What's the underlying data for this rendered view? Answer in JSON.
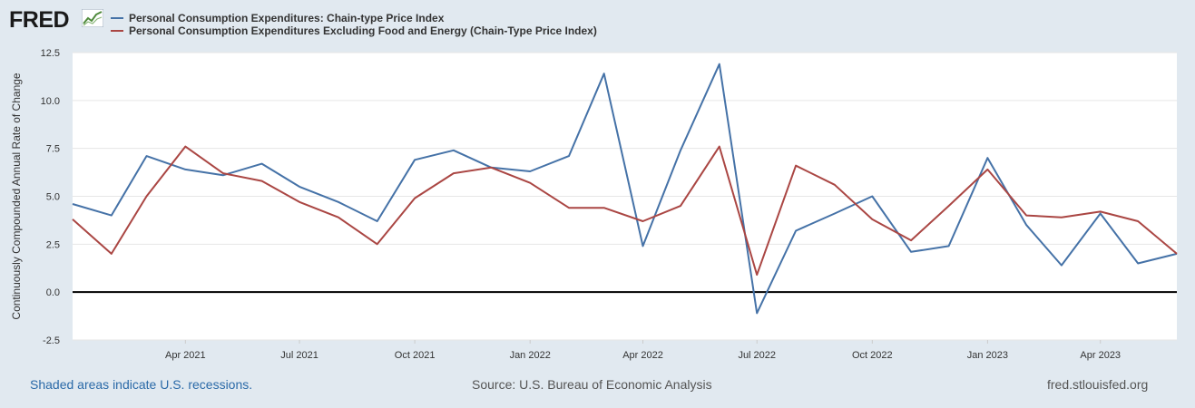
{
  "header": {
    "logo_text": "FRED",
    "logo_icon": "chart-line-icon"
  },
  "colors": {
    "series1": "#4572a7",
    "series2": "#aa4643",
    "background": "#e1e9f0",
    "plot_bg": "#ffffff"
  },
  "chart_data": {
    "type": "line",
    "title": "",
    "ylabel": "Continuously Compounded Annual Rate of Change",
    "xlabel": "",
    "ylim": [
      -2.5,
      12.5
    ],
    "yticks": [
      -2.5,
      0.0,
      2.5,
      5.0,
      7.5,
      10.0,
      12.5
    ],
    "ytick_labels": [
      "-2.5",
      "0.0",
      "2.5",
      "5.0",
      "7.5",
      "10.0",
      "12.5"
    ],
    "xlim": [
      "2021-01-01",
      "2023-06-01"
    ],
    "xtick_dates": [
      "2021-04-01",
      "2021-07-01",
      "2021-10-01",
      "2022-01-01",
      "2022-04-01",
      "2022-07-01",
      "2022-10-01",
      "2023-01-01",
      "2023-04-01"
    ],
    "xtick_labels": [
      "Apr 2021",
      "Jul 2021",
      "Oct 2021",
      "Jan 2022",
      "Apr 2022",
      "Jul 2022",
      "Oct 2022",
      "Jan 2023",
      "Apr 2023"
    ],
    "grid": true,
    "legend_position": "top-left",
    "x": [
      "2021-01-01",
      "2021-02-01",
      "2021-03-01",
      "2021-04-01",
      "2021-05-01",
      "2021-06-01",
      "2021-07-01",
      "2021-08-01",
      "2021-09-01",
      "2021-10-01",
      "2021-11-01",
      "2021-12-01",
      "2022-01-01",
      "2022-02-01",
      "2022-03-01",
      "2022-04-01",
      "2022-05-01",
      "2022-06-01",
      "2022-07-01",
      "2022-08-01",
      "2022-09-01",
      "2022-10-01",
      "2022-11-01",
      "2022-12-01",
      "2023-01-01",
      "2023-02-01",
      "2023-03-01",
      "2023-04-01",
      "2023-05-01",
      "2023-06-01"
    ],
    "series": [
      {
        "name": "Personal Consumption Expenditures: Chain-type Price Index",
        "color": "#4572a7",
        "values": [
          4.6,
          4.0,
          7.1,
          6.4,
          6.1,
          6.7,
          5.5,
          4.7,
          3.7,
          6.9,
          7.4,
          6.5,
          6.3,
          7.1,
          11.4,
          2.4,
          7.4,
          11.9,
          -1.1,
          3.2,
          4.1,
          5.0,
          2.1,
          2.4,
          7.0,
          3.5,
          1.4,
          4.1,
          1.5,
          2.0
        ]
      },
      {
        "name": "Personal Consumption Expenditures Excluding Food and Energy (Chain-Type Price Index)",
        "color": "#aa4643",
        "values": [
          3.8,
          2.0,
          5.0,
          7.6,
          6.2,
          5.8,
          4.7,
          3.9,
          2.5,
          4.9,
          6.2,
          6.5,
          5.7,
          4.4,
          4.4,
          3.7,
          4.5,
          7.6,
          0.9,
          6.6,
          5.6,
          3.8,
          2.7,
          4.5,
          6.4,
          4.0,
          3.9,
          4.2,
          3.7,
          2.0
        ]
      }
    ]
  },
  "footer": {
    "recessions_note": "Shaded areas indicate U.S. recessions.",
    "source": "Source: U.S. Bureau of Economic Analysis",
    "site": "fred.stlouisfed.org"
  }
}
